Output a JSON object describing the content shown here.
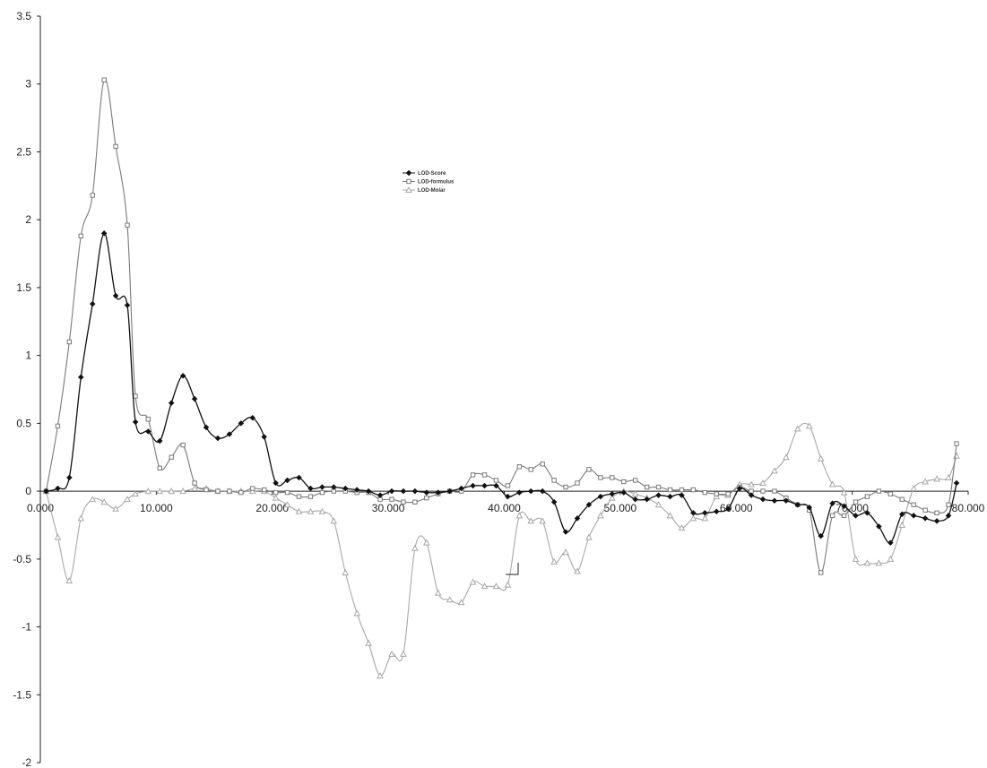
{
  "chart_data": {
    "type": "line",
    "title": "",
    "xlabel": "",
    "ylabel": "",
    "xlim": [
      0,
      80
    ],
    "ylim": [
      -2,
      3.5
    ],
    "x_ticks": [
      0,
      10,
      20,
      30,
      40,
      50,
      60,
      70,
      80
    ],
    "x_tick_labels": [
      "0.000",
      "10.000",
      "20.000",
      "30.000",
      "40.000",
      "50.000",
      "60.000",
      "70.000",
      "80.000"
    ],
    "y_ticks": [
      -2,
      -1.5,
      -1,
      -0.5,
      0,
      0.5,
      1,
      1.5,
      2,
      2.5,
      3,
      3.5
    ],
    "y_tick_labels": [
      "-2",
      "-1.5",
      "-1",
      "-0.5",
      "0",
      "0.5",
      "1",
      "1.5",
      "2",
      "2.5",
      "3",
      "3.5"
    ],
    "grid": false,
    "legend_position": "top-center",
    "series": [
      {
        "name": "LOD-Score",
        "color": "#111111",
        "marker": "diamond",
        "points": [
          [
            0.5,
            0.0
          ],
          [
            1.5,
            0.02
          ],
          [
            2.5,
            0.1
          ],
          [
            3.5,
            0.84
          ],
          [
            4.5,
            1.38
          ],
          [
            5.5,
            1.9
          ],
          [
            6.5,
            1.44
          ],
          [
            7.5,
            1.37
          ],
          [
            8.2,
            0.51
          ],
          [
            9.3,
            0.44
          ],
          [
            10.3,
            0.37
          ],
          [
            11.3,
            0.65
          ],
          [
            12.3,
            0.85
          ],
          [
            13.3,
            0.68
          ],
          [
            14.3,
            0.47
          ],
          [
            15.3,
            0.39
          ],
          [
            16.3,
            0.42
          ],
          [
            17.3,
            0.5
          ],
          [
            18.3,
            0.54
          ],
          [
            19.3,
            0.4
          ],
          [
            20.3,
            0.06
          ],
          [
            21.3,
            0.08
          ],
          [
            22.3,
            0.1
          ],
          [
            23.3,
            0.02
          ],
          [
            24.3,
            0.03
          ],
          [
            25.3,
            0.03
          ],
          [
            26.3,
            0.02
          ],
          [
            27.3,
            0.01
          ],
          [
            28.3,
            0.0
          ],
          [
            29.3,
            -0.03
          ],
          [
            30.3,
            0.0
          ],
          [
            31.3,
            0.0
          ],
          [
            32.3,
            0.0
          ],
          [
            33.3,
            -0.01
          ],
          [
            34.3,
            -0.01
          ],
          [
            35.3,
            0.0
          ],
          [
            36.3,
            0.02
          ],
          [
            37.3,
            0.04
          ],
          [
            38.3,
            0.04
          ],
          [
            39.3,
            0.04
          ],
          [
            40.3,
            -0.04
          ],
          [
            41.3,
            -0.01
          ],
          [
            42.3,
            0.0
          ],
          [
            43.3,
            0.0
          ],
          [
            44.3,
            -0.08
          ],
          [
            45.3,
            -0.3
          ],
          [
            46.3,
            -0.2
          ],
          [
            47.3,
            -0.1
          ],
          [
            48.3,
            -0.04
          ],
          [
            49.3,
            -0.02
          ],
          [
            50.3,
            -0.01
          ],
          [
            51.3,
            -0.06
          ],
          [
            52.3,
            -0.06
          ],
          [
            53.3,
            -0.03
          ],
          [
            54.3,
            -0.04
          ],
          [
            55.3,
            -0.03
          ],
          [
            56.3,
            -0.16
          ],
          [
            57.3,
            -0.16
          ],
          [
            58.3,
            -0.15
          ],
          [
            59.3,
            -0.13
          ],
          [
            60.3,
            0.02
          ],
          [
            61.3,
            -0.03
          ],
          [
            62.3,
            -0.06
          ],
          [
            63.3,
            -0.07
          ],
          [
            64.3,
            -0.07
          ],
          [
            65.3,
            -0.1
          ],
          [
            66.3,
            -0.12
          ],
          [
            67.3,
            -0.33
          ],
          [
            68.3,
            -0.09
          ],
          [
            69.3,
            -0.11
          ],
          [
            70.3,
            -0.18
          ],
          [
            71.3,
            -0.16
          ],
          [
            72.3,
            -0.26
          ],
          [
            73.3,
            -0.38
          ],
          [
            74.3,
            -0.17
          ],
          [
            75.3,
            -0.18
          ],
          [
            76.3,
            -0.2
          ],
          [
            77.3,
            -0.22
          ],
          [
            78.3,
            -0.18
          ],
          [
            79.0,
            0.06
          ]
        ]
      },
      {
        "name": "LOD-formulus",
        "color": "#7a7a7a",
        "marker": "square",
        "points": [
          [
            0.5,
            0.0
          ],
          [
            1.5,
            0.48
          ],
          [
            2.5,
            1.1
          ],
          [
            3.5,
            1.88
          ],
          [
            4.5,
            2.18
          ],
          [
            5.5,
            3.03
          ],
          [
            6.5,
            2.54
          ],
          [
            7.5,
            1.96
          ],
          [
            8.2,
            0.7
          ],
          [
            9.3,
            0.53
          ],
          [
            10.3,
            0.17
          ],
          [
            11.3,
            0.25
          ],
          [
            12.3,
            0.34
          ],
          [
            13.3,
            0.06
          ],
          [
            14.3,
            0.01
          ],
          [
            15.3,
            0.0
          ],
          [
            16.3,
            0.0
          ],
          [
            17.3,
            -0.01
          ],
          [
            18.3,
            0.02
          ],
          [
            19.3,
            0.01
          ],
          [
            20.3,
            -0.01
          ],
          [
            21.3,
            -0.01
          ],
          [
            22.3,
            -0.04
          ],
          [
            23.3,
            -0.04
          ],
          [
            24.3,
            -0.01
          ],
          [
            25.3,
            0.0
          ],
          [
            26.3,
            0.0
          ],
          [
            27.3,
            -0.01
          ],
          [
            28.3,
            -0.01
          ],
          [
            29.3,
            -0.06
          ],
          [
            30.3,
            -0.06
          ],
          [
            31.3,
            -0.08
          ],
          [
            32.3,
            -0.08
          ],
          [
            33.3,
            -0.05
          ],
          [
            34.3,
            -0.02
          ],
          [
            35.3,
            0.0
          ],
          [
            36.3,
            0.0
          ],
          [
            37.3,
            0.12
          ],
          [
            38.3,
            0.12
          ],
          [
            39.3,
            0.08
          ],
          [
            40.3,
            0.04
          ],
          [
            41.3,
            0.18
          ],
          [
            42.3,
            0.16
          ],
          [
            43.3,
            0.2
          ],
          [
            44.3,
            0.08
          ],
          [
            45.3,
            0.03
          ],
          [
            46.3,
            0.06
          ],
          [
            47.3,
            0.16
          ],
          [
            48.3,
            0.1
          ],
          [
            49.3,
            0.1
          ],
          [
            50.3,
            0.07
          ],
          [
            51.3,
            0.08
          ],
          [
            52.3,
            0.03
          ],
          [
            53.3,
            0.03
          ],
          [
            54.3,
            0.01
          ],
          [
            55.3,
            0.01
          ],
          [
            56.3,
            0.01
          ],
          [
            57.3,
            -0.01
          ],
          [
            58.3,
            -0.02
          ],
          [
            59.3,
            -0.02
          ],
          [
            60.3,
            0.03
          ],
          [
            61.3,
            0.0
          ],
          [
            62.3,
            0.0
          ],
          [
            63.3,
            0.0
          ],
          [
            64.3,
            -0.05
          ],
          [
            65.3,
            -0.1
          ],
          [
            66.3,
            -0.14
          ],
          [
            67.3,
            -0.6
          ],
          [
            68.3,
            -0.18
          ],
          [
            69.3,
            -0.18
          ],
          [
            70.3,
            -0.08
          ],
          [
            71.3,
            -0.04
          ],
          [
            72.3,
            0.0
          ],
          [
            73.3,
            -0.02
          ],
          [
            74.3,
            -0.06
          ],
          [
            75.3,
            -0.1
          ],
          [
            76.3,
            -0.14
          ],
          [
            77.3,
            -0.16
          ],
          [
            78.3,
            -0.1
          ],
          [
            79.0,
            0.35
          ]
        ]
      },
      {
        "name": "LOD-Molar",
        "color": "#a8a8a8",
        "marker": "triangle",
        "points": [
          [
            0.5,
            0.0
          ],
          [
            1.5,
            -0.34
          ],
          [
            2.5,
            -0.66
          ],
          [
            3.5,
            -0.2
          ],
          [
            4.5,
            -0.06
          ],
          [
            5.5,
            -0.08
          ],
          [
            6.5,
            -0.13
          ],
          [
            7.5,
            -0.06
          ],
          [
            8.2,
            -0.02
          ],
          [
            9.3,
            0.0
          ],
          [
            10.3,
            0.0
          ],
          [
            11.3,
            0.0
          ],
          [
            12.3,
            0.0
          ],
          [
            13.3,
            0.02
          ],
          [
            14.3,
            0.02
          ],
          [
            15.3,
            0.0
          ],
          [
            16.3,
            0.0
          ],
          [
            17.3,
            0.0
          ],
          [
            18.3,
            0.0
          ],
          [
            19.3,
            0.0
          ],
          [
            20.3,
            -0.05
          ],
          [
            21.3,
            -0.1
          ],
          [
            22.3,
            -0.15
          ],
          [
            23.3,
            -0.15
          ],
          [
            24.3,
            -0.15
          ],
          [
            25.3,
            -0.22
          ],
          [
            26.3,
            -0.6
          ],
          [
            27.3,
            -0.9
          ],
          [
            28.3,
            -1.12
          ],
          [
            29.3,
            -1.36
          ],
          [
            30.3,
            -1.2
          ],
          [
            31.3,
            -1.2
          ],
          [
            32.3,
            -0.42
          ],
          [
            33.3,
            -0.38
          ],
          [
            34.3,
            -0.75
          ],
          [
            35.3,
            -0.8
          ],
          [
            36.3,
            -0.82
          ],
          [
            37.3,
            -0.67
          ],
          [
            38.3,
            -0.7
          ],
          [
            39.3,
            -0.7
          ],
          [
            40.3,
            -0.69
          ],
          [
            41.3,
            -0.18
          ],
          [
            42.3,
            -0.22
          ],
          [
            43.3,
            -0.22
          ],
          [
            44.3,
            -0.52
          ],
          [
            45.3,
            -0.45
          ],
          [
            46.3,
            -0.59
          ],
          [
            47.3,
            -0.34
          ],
          [
            48.3,
            -0.18
          ],
          [
            49.3,
            -0.05
          ],
          [
            50.3,
            0.0
          ],
          [
            51.3,
            -0.02
          ],
          [
            52.3,
            -0.05
          ],
          [
            53.3,
            -0.1
          ],
          [
            54.3,
            -0.18
          ],
          [
            55.3,
            -0.27
          ],
          [
            56.3,
            -0.2
          ],
          [
            57.3,
            -0.2
          ],
          [
            58.3,
            -0.04
          ],
          [
            59.3,
            -0.03
          ],
          [
            60.3,
            0.05
          ],
          [
            61.3,
            0.05
          ],
          [
            62.3,
            0.06
          ],
          [
            63.3,
            0.15
          ],
          [
            64.3,
            0.25
          ],
          [
            65.3,
            0.46
          ],
          [
            66.3,
            0.48
          ],
          [
            67.3,
            0.24
          ],
          [
            68.3,
            0.05
          ],
          [
            69.3,
            -0.01
          ],
          [
            70.3,
            -0.5
          ],
          [
            71.3,
            -0.53
          ],
          [
            72.3,
            -0.53
          ],
          [
            73.3,
            -0.5
          ],
          [
            74.3,
            -0.25
          ],
          [
            75.3,
            0.02
          ],
          [
            76.3,
            0.07
          ],
          [
            77.3,
            0.09
          ],
          [
            78.3,
            0.1
          ],
          [
            79.0,
            0.26
          ]
        ]
      }
    ]
  }
}
